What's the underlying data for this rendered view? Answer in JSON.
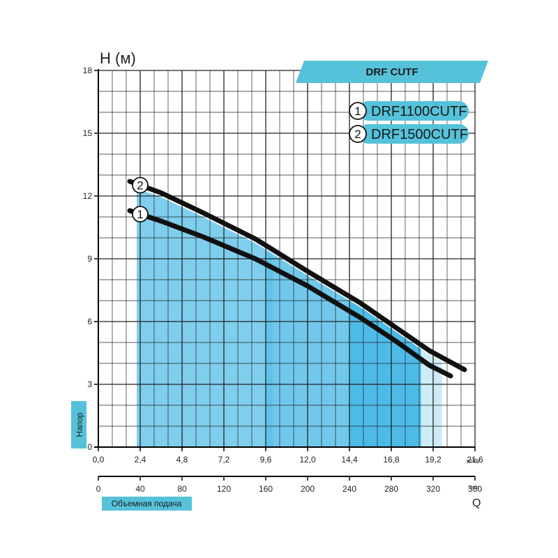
{
  "chart_data": {
    "type": "line",
    "title": "DRF CUTF",
    "y_axis": {
      "label": "H (м)",
      "side_label": "Напор",
      "ylim": [
        0,
        18
      ],
      "ticks": [
        "0",
        "3",
        "6",
        "9",
        "12",
        "15",
        "18"
      ]
    },
    "x_axis_primary": {
      "unit": "m³/h",
      "xlim": [
        0,
        21.6
      ],
      "ticks": [
        "0,0",
        "2,4",
        "4,8",
        "7,2",
        "9,6",
        "12,0",
        "14,4",
        "16,8",
        "19,2",
        "21,6"
      ]
    },
    "x_axis_secondary": {
      "unit": "l/min",
      "label": "Q",
      "xlim": [
        0,
        360
      ],
      "ticks": [
        "0",
        "40",
        "80",
        "120",
        "160",
        "200",
        "240",
        "280",
        "320",
        "360"
      ],
      "badge": "Объемная подача"
    },
    "series": [
      {
        "name": "DRF1100CUTF",
        "marker": "1",
        "points": [
          [
            1.8,
            11.3
          ],
          [
            3.6,
            10.8
          ],
          [
            6.0,
            10.05
          ],
          [
            9.0,
            9.0
          ],
          [
            12.0,
            7.7
          ],
          [
            15.0,
            6.2
          ],
          [
            17.0,
            5.1
          ],
          [
            19.0,
            3.9
          ],
          [
            20.2,
            3.4
          ]
        ]
      },
      {
        "name": "DRF1500CUTF",
        "marker": "2",
        "points": [
          [
            1.8,
            12.7
          ],
          [
            3.6,
            12.15
          ],
          [
            6.0,
            11.2
          ],
          [
            9.0,
            9.95
          ],
          [
            12.0,
            8.4
          ],
          [
            15.0,
            6.9
          ],
          [
            17.0,
            5.75
          ],
          [
            19.0,
            4.6
          ],
          [
            21.0,
            3.7
          ]
        ]
      }
    ],
    "shaded_regions": [
      {
        "x": [
          2.2,
          19.7
        ],
        "opacity": 0.22
      },
      {
        "x": [
          2.2,
          18.5
        ],
        "opacity": 0.3
      },
      {
        "x": [
          2.2,
          10.0
        ],
        "opacity": 0.18
      },
      {
        "x": [
          9.6,
          18.5
        ],
        "opacity": 0.3
      },
      {
        "x": [
          14.4,
          18.5
        ],
        "opacity": 0.4
      }
    ],
    "colors": {
      "accent": "#55c2da",
      "fill": "#1aa7e0",
      "curve": "#111111",
      "grid": "#222222"
    },
    "grid": true,
    "legend_position": "top-right"
  }
}
